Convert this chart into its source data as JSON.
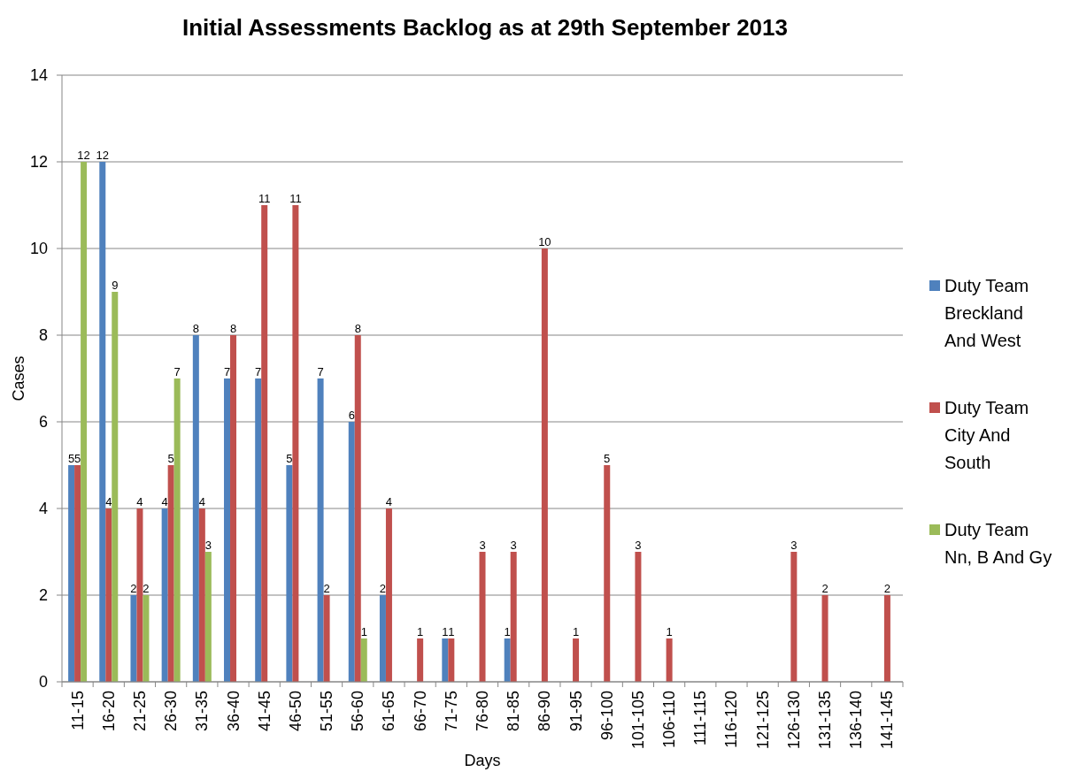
{
  "chart_data": {
    "type": "bar",
    "title": "Initial Assessments Backlog as at 29th September 2013",
    "xlabel": "Days",
    "ylabel": "Cases",
    "categories": [
      "11-15",
      "16-20",
      "21-25",
      "26-30",
      "31-35",
      "36-40",
      "41-45",
      "46-50",
      "51-55",
      "56-60",
      "61-65",
      "66-70",
      "71-75",
      "76-80",
      "81-85",
      "86-90",
      "91-95",
      "96-100",
      "101-105",
      "106-110",
      "111-115",
      "116-120",
      "121-125",
      "126-130",
      "131-135",
      "136-140",
      "141-145"
    ],
    "series": [
      {
        "name": "Duty Team Breckland And West",
        "color": "#4f81bd",
        "values": [
          5,
          12,
          2,
          4,
          8,
          7,
          7,
          5,
          7,
          6,
          2,
          null,
          1,
          null,
          1,
          null,
          null,
          null,
          null,
          null,
          null,
          null,
          null,
          null,
          null,
          null,
          null
        ]
      },
      {
        "name": "Duty Team City And South",
        "color": "#c0504d",
        "values": [
          5,
          4,
          4,
          5,
          4,
          8,
          11,
          11,
          2,
          8,
          4,
          1,
          1,
          3,
          3,
          10,
          1,
          5,
          3,
          1,
          null,
          null,
          null,
          3,
          2,
          null,
          2
        ]
      },
      {
        "name": "Duty Team Nn, B And Gy",
        "color": "#9bbb59",
        "values": [
          12,
          9,
          2,
          7,
          3,
          null,
          null,
          null,
          null,
          1,
          null,
          null,
          null,
          null,
          null,
          null,
          null,
          null,
          null,
          null,
          null,
          null,
          null,
          null,
          null,
          null,
          null
        ]
      }
    ],
    "ylim": [
      0,
      14
    ],
    "yticks": [
      0,
      2,
      4,
      6,
      8,
      10,
      12,
      14
    ],
    "grid": "y",
    "legend": "right",
    "data_labels": true
  }
}
